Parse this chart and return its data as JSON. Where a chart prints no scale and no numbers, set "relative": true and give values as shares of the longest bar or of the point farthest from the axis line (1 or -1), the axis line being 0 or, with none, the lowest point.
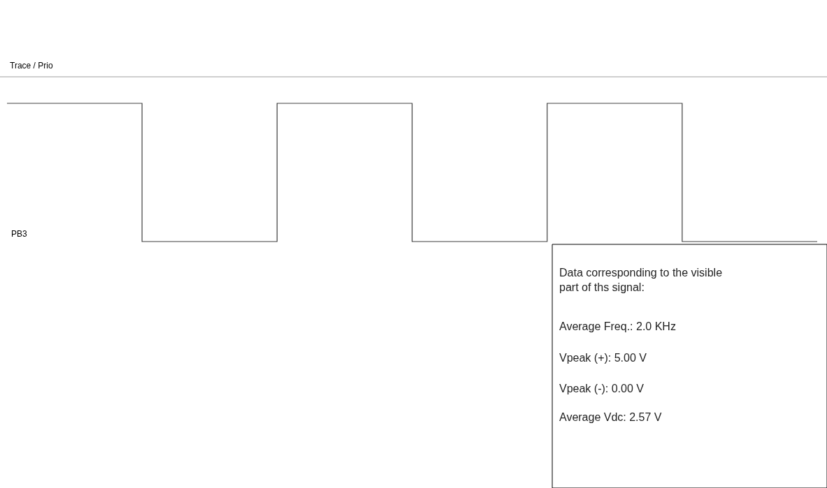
{
  "chart_data": {
    "type": "step",
    "relative": true,
    "categories": [
      null,
      null,
      null,
      null,
      null,
      null,
      null
    ],
    "series": [
      {
        "name": "PB3",
        "color": "#404040",
        "values": [
          1,
          0,
          1,
          0,
          1,
          0,
          0
        ]
      }
    ],
    "annotations": [
      "Trace / Prio",
      "Data corresponding to the visible part of ths signal:",
      "Average Freq.: 2.0 KHz",
      "Vpeak (+): 5.00 V",
      "Vpeak (-): 0.00 V",
      "Average Vdc: 2.57 V"
    ]
  }
}
